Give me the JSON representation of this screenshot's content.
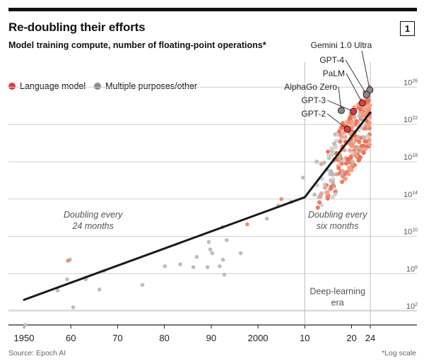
{
  "badge": "1",
  "chart_data": {
    "type": "scatter",
    "title": "Re-doubling their efforts",
    "subtitle": "Model training compute, number of floating-point operations*",
    "source": "Source: Epoch AI",
    "scale_note": "*Log scale",
    "y_scale": "log",
    "ylim": [
      0.5,
      28
    ],
    "xlim": [
      1950,
      2024
    ],
    "grid": true,
    "legend_position": "top-left",
    "colors": {
      "language": "#e23b3b",
      "other": "#8a8a8a",
      "other_light": "#bdbdbd",
      "trend": "#1a1a1a"
    },
    "x_ticks": [
      {
        "value": 1950,
        "label": "1950"
      },
      {
        "value": 1960,
        "label": "60"
      },
      {
        "value": 1970,
        "label": "70"
      },
      {
        "value": 1980,
        "label": "80"
      },
      {
        "value": 1990,
        "label": "90"
      },
      {
        "value": 2000,
        "label": "2000"
      },
      {
        "value": 2010,
        "label": "10"
      },
      {
        "value": 2020,
        "label": "20"
      },
      {
        "value": 2024,
        "label": "24"
      }
    ],
    "y_ticks": [
      {
        "exp": 2,
        "base": "10",
        "sup": "2"
      },
      {
        "exp": 6,
        "base": "10",
        "sup": "6"
      },
      {
        "exp": 10,
        "base": "10",
        "sup": "10"
      },
      {
        "exp": 14,
        "base": "10",
        "sup": "14"
      },
      {
        "exp": 18,
        "base": "10",
        "sup": "18"
      },
      {
        "exp": 22,
        "base": "10",
        "sup": "22"
      },
      {
        "exp": 26,
        "base": "10",
        "sup": "26"
      }
    ],
    "legend": [
      {
        "name": "Language model",
        "color": "#e23b3b"
      },
      {
        "name": "Multiple purposes/other",
        "color": "#8a8a8a"
      }
    ],
    "trend_lines": [
      {
        "label": "Doubling every 24 months",
        "points": [
          [
            1950,
            3.2
          ],
          [
            2010,
            14.2
          ]
        ]
      },
      {
        "label": "Doubling every six months",
        "points": [
          [
            2010,
            14.2
          ],
          [
            2024,
            23.3
          ]
        ]
      }
    ],
    "annotations": [
      {
        "text_lines": [
          "Doubling every",
          "24 months"
        ],
        "x": 1964,
        "y": 12.0
      },
      {
        "text_lines": [
          "Doubling every",
          "six months"
        ],
        "x": 2017,
        "y": 12.0
      },
      {
        "text_lines": [
          "Deep-learning",
          "era"
        ],
        "x": 2017,
        "y": 3.8
      }
    ],
    "highlighted": [
      {
        "label": "Gemini 1.0 Ultra",
        "x": 2023.9,
        "y": 25.7,
        "group": "other"
      },
      {
        "label": "GPT-4",
        "x": 2023.2,
        "y": 25.2,
        "group": "other"
      },
      {
        "label": "PaLM",
        "x": 2022.3,
        "y": 24.3,
        "group": "language"
      },
      {
        "label": "AlphaGo Zero",
        "x": 2017.8,
        "y": 23.5,
        "group": "other"
      },
      {
        "label": "GPT-3",
        "x": 2020.4,
        "y": 23.4,
        "group": "language"
      },
      {
        "label": "GPT-2",
        "x": 2019.1,
        "y": 21.5,
        "group": "language"
      }
    ],
    "points_pre2010": [
      {
        "x": 1950.3,
        "y": 0.5,
        "g": "other"
      },
      {
        "x": 1957.2,
        "y": 4.2,
        "g": "other"
      },
      {
        "x": 1959.2,
        "y": 5.4,
        "g": "other"
      },
      {
        "x": 1959.8,
        "y": 7.5,
        "g": "other"
      },
      {
        "x": 1959.4,
        "y": 7.4,
        "g": "language"
      },
      {
        "x": 1960.5,
        "y": 2.4,
        "g": "other"
      },
      {
        "x": 1963.2,
        "y": 5.4,
        "g": "other"
      },
      {
        "x": 1966.1,
        "y": 4.3,
        "g": "other"
      },
      {
        "x": 1967.1,
        "y": 6.3,
        "g": "other"
      },
      {
        "x": 1975.3,
        "y": 4.8,
        "g": "other"
      },
      {
        "x": 1980.1,
        "y": 6.8,
        "g": "other"
      },
      {
        "x": 1983.4,
        "y": 7.0,
        "g": "other"
      },
      {
        "x": 1986.2,
        "y": 6.7,
        "g": "other"
      },
      {
        "x": 1986.9,
        "y": 7.8,
        "g": "other"
      },
      {
        "x": 1989.2,
        "y": 6.7,
        "g": "other"
      },
      {
        "x": 1989.5,
        "y": 9.4,
        "g": "other"
      },
      {
        "x": 1989.8,
        "y": 8.6,
        "g": "other"
      },
      {
        "x": 1990.2,
        "y": 8.2,
        "g": "other"
      },
      {
        "x": 1991.8,
        "y": 6.8,
        "g": "other"
      },
      {
        "x": 1992.4,
        "y": 11.0,
        "g": "other"
      },
      {
        "x": 1992.8,
        "y": 5.9,
        "g": "other"
      },
      {
        "x": 1992.5,
        "y": 7.5,
        "g": "other"
      },
      {
        "x": 1993.3,
        "y": 9.6,
        "g": "other"
      },
      {
        "x": 1996.3,
        "y": 8.2,
        "g": "other"
      },
      {
        "x": 1997.7,
        "y": 11.3,
        "g": "language"
      },
      {
        "x": 2001.9,
        "y": 11.9,
        "g": "other"
      },
      {
        "x": 2004.3,
        "y": 13.3,
        "g": "other"
      },
      {
        "x": 2005.0,
        "y": 14.0,
        "g": "language"
      },
      {
        "x": 2007.1,
        "y": 13.7,
        "g": "other"
      },
      {
        "x": 2009.6,
        "y": 16.3,
        "g": "other"
      }
    ]
  }
}
